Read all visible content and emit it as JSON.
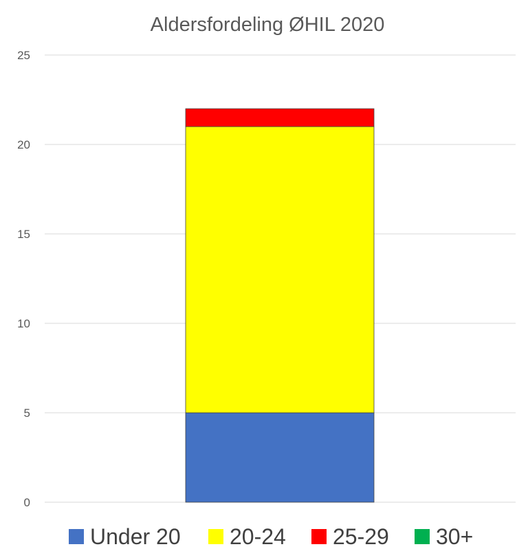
{
  "chart_data": {
    "type": "bar",
    "stacked": true,
    "title": "Aldersfordeling ØHIL 2020",
    "categories": [
      ""
    ],
    "series": [
      {
        "name": "Under 20",
        "values": [
          5
        ],
        "color": "#4472c4"
      },
      {
        "name": "20-24",
        "values": [
          16
        ],
        "color": "#ffff00"
      },
      {
        "name": "25-29",
        "values": [
          1
        ],
        "color": "#ff0000"
      },
      {
        "name": "30+",
        "values": [
          0
        ],
        "color": "#00b050"
      }
    ],
    "ylim": [
      0,
      25
    ],
    "yticks": [
      0,
      5,
      10,
      15,
      20,
      25
    ],
    "grid": true,
    "legend_position": "bottom"
  }
}
